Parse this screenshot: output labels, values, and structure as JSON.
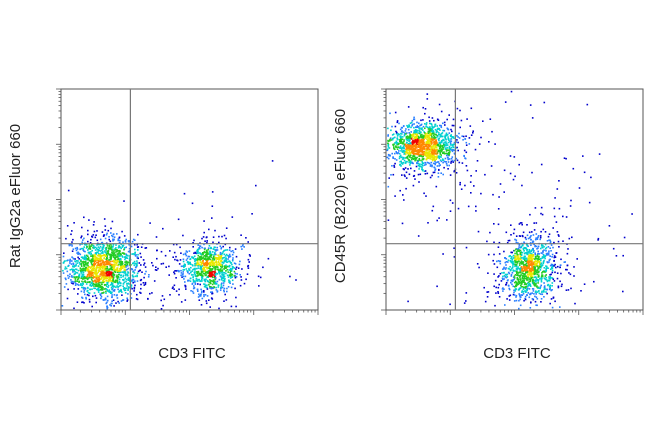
{
  "chart_data": [
    {
      "type": "scatter",
      "subtype": "flow-cytometry-density-plot",
      "title": "",
      "xlabel": "CD3 FITC",
      "ylabel": "Rat IgG2a eFluor 660",
      "xscale": "log",
      "yscale": "log",
      "xlim": [
        0,
        1
      ],
      "ylim": [
        0,
        1
      ],
      "grid": false,
      "gates": {
        "x": 0.27,
        "y": 0.3
      },
      "populations": [
        {
          "cx": 0.17,
          "cy": 0.19,
          "sx": 0.075,
          "sy": 0.07,
          "count": 1500,
          "peak": "red"
        },
        {
          "cx": 0.58,
          "cy": 0.19,
          "sx": 0.06,
          "sy": 0.06,
          "count": 850,
          "peak": "green"
        }
      ],
      "background_events": 120
    },
    {
      "type": "scatter",
      "subtype": "flow-cytometry-density-plot",
      "title": "",
      "xlabel": "CD3 FITC",
      "ylabel": "CD45R (B220) eFluor 660",
      "xscale": "log",
      "yscale": "log",
      "xlim": [
        0,
        1
      ],
      "ylim": [
        0,
        1
      ],
      "grid": false,
      "gates": {
        "x": 0.27,
        "y": 0.3
      },
      "populations": [
        {
          "cx": 0.14,
          "cy": 0.74,
          "sx": 0.07,
          "sy": 0.05,
          "count": 1200,
          "peak": "red"
        },
        {
          "cx": 0.56,
          "cy": 0.19,
          "sx": 0.055,
          "sy": 0.075,
          "count": 1000,
          "peak": "green"
        }
      ],
      "background_events": 420
    }
  ],
  "palette": [
    "#0000cc",
    "#2a7fff",
    "#00d0d0",
    "#22cc22",
    "#e8e800",
    "#ff8800",
    "#ee0000"
  ]
}
